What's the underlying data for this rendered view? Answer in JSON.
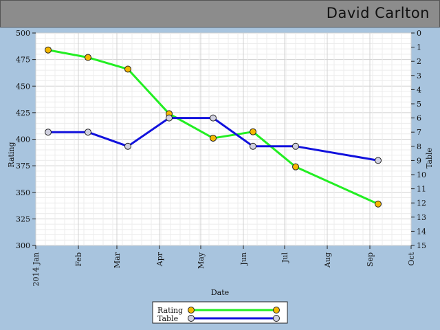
{
  "header": {
    "title": "David Carlton"
  },
  "chart_data": {
    "type": "line",
    "xlabel": "Date",
    "ylabel": "Rating",
    "y2label": "Table",
    "ylim": [
      300,
      500
    ],
    "y2lim": [
      0,
      15
    ],
    "y2_inverted": true,
    "x_ticks": [
      "2014 Jan",
      "Feb",
      "Mar",
      "Apr",
      "May",
      "Jun",
      "Jul",
      "Aug",
      "Sep",
      "Oct"
    ],
    "y_ticks": [
      300,
      325,
      350,
      375,
      400,
      425,
      450,
      475,
      500
    ],
    "y2_ticks": [
      0,
      1,
      2,
      3,
      4,
      5,
      6,
      7,
      8,
      9,
      10,
      11,
      12,
      13,
      14,
      15
    ],
    "grid": true,
    "legend": "bottom-center",
    "series": [
      {
        "name": "Rating",
        "axis": "left",
        "color": "#22ee22",
        "marker_color": "#f5b800",
        "x": [
          "2014-01-10",
          "2014-02-08",
          "2014-03-09",
          "2014-04-08",
          "2014-05-10",
          "2014-06-08",
          "2014-07-09",
          "2014-09-07"
        ],
        "values": [
          484,
          477,
          466,
          424,
          401,
          407,
          374,
          339
        ]
      },
      {
        "name": "Table",
        "axis": "right",
        "color": "#1111dd",
        "marker_color": "#d0d0e0",
        "x": [
          "2014-01-10",
          "2014-02-08",
          "2014-03-09",
          "2014-04-08",
          "2014-05-10",
          "2014-06-08",
          "2014-07-09",
          "2014-09-07"
        ],
        "values": [
          7,
          7,
          8,
          6,
          6,
          8,
          8,
          9
        ]
      }
    ]
  }
}
